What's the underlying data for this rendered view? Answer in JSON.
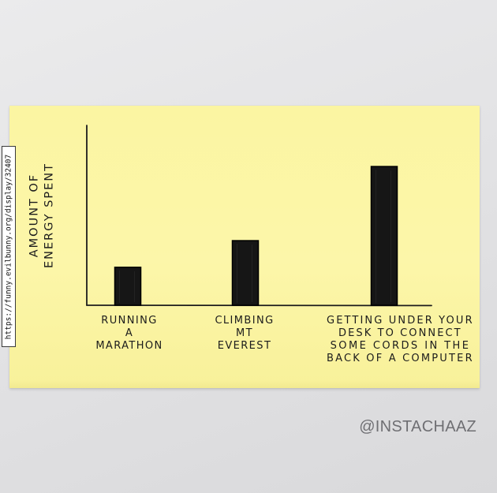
{
  "chart_data": {
    "type": "bar",
    "ylabel_lines": [
      "AMOUNT OF",
      "ENERGY SPENT"
    ],
    "categories": [
      {
        "label_lines": [
          "RUNNING",
          "A",
          "MARATHON"
        ]
      },
      {
        "label_lines": [
          "CLIMBING",
          "MT",
          "EVEREST"
        ]
      },
      {
        "label_lines": [
          "GETTING UNDER YOUR",
          "DESK TO CONNECT",
          "SOME CORDS IN THE",
          "BACK OF A COMPUTER"
        ]
      }
    ],
    "values": [
      20,
      34,
      73
    ],
    "ylim": [
      0,
      100
    ],
    "axis_ticks": false,
    "grid": false,
    "bar_color": "#161616"
  },
  "source_url": "https://funny.evilbunny.org/display/32407",
  "watermark": "@INSTACHAAZ"
}
